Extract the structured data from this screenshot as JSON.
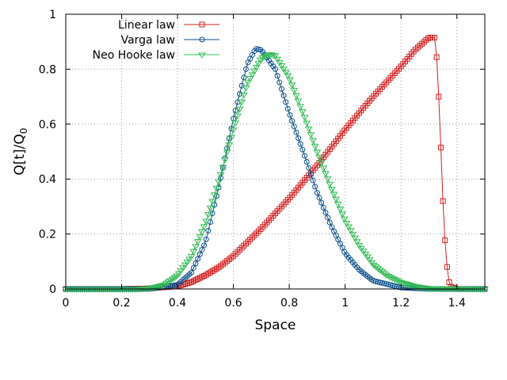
{
  "chart_data": {
    "type": "line",
    "title": "",
    "xlabel": "Space",
    "ylabel_main": "Q[t]/Q",
    "ylabel_sub": "0",
    "xlim": [
      0,
      1.5
    ],
    "ylim": [
      0,
      1
    ],
    "xticks": [
      0,
      0.2,
      0.4,
      0.6,
      0.8,
      1,
      1.2,
      1.4
    ],
    "xtick_labels": [
      "0",
      "0.2",
      "0.4",
      "0.6",
      "0.8",
      "1",
      "1.2",
      "1.4"
    ],
    "yticks": [
      0,
      0.2,
      0.4,
      0.6,
      0.8,
      1
    ],
    "ytick_labels": [
      "0",
      "0.2",
      "0.4",
      "0.6",
      "0.8",
      "1"
    ],
    "grid": true,
    "legend_position": "top-left",
    "series": [
      {
        "name": "Linear law",
        "color": "#d42020",
        "marker": "square",
        "x": [
          0,
          0.2,
          0.3,
          0.4,
          0.45,
          0.5,
          0.55,
          0.6,
          0.7,
          0.8,
          0.9,
          1.0,
          1.1,
          1.2,
          1.25,
          1.3,
          1.32,
          1.33,
          1.34,
          1.35,
          1.36,
          1.37,
          1.38,
          1.4,
          1.5
        ],
        "y": [
          0,
          0,
          0.002,
          0.01,
          0.025,
          0.05,
          0.08,
          0.12,
          0.22,
          0.33,
          0.45,
          0.58,
          0.7,
          0.81,
          0.87,
          0.915,
          0.915,
          0.82,
          0.58,
          0.32,
          0.13,
          0.03,
          0.008,
          0,
          0
        ]
      },
      {
        "name": "Varga law",
        "color": "#0a4f8a",
        "marker": "circle",
        "x": [
          0,
          0.3,
          0.4,
          0.45,
          0.5,
          0.55,
          0.6,
          0.65,
          0.68,
          0.7,
          0.75,
          0.8,
          0.85,
          0.9,
          0.95,
          1.0,
          1.05,
          1.1,
          1.2,
          1.3,
          1.5
        ],
        "y": [
          0,
          0,
          0.015,
          0.06,
          0.17,
          0.38,
          0.62,
          0.82,
          0.875,
          0.87,
          0.8,
          0.64,
          0.5,
          0.35,
          0.23,
          0.13,
          0.07,
          0.03,
          0.005,
          0,
          0
        ]
      },
      {
        "name": "Neo Hooke law",
        "color": "#33bb55",
        "marker": "triangle-down",
        "x": [
          0,
          0.25,
          0.3,
          0.35,
          0.4,
          0.45,
          0.5,
          0.55,
          0.6,
          0.65,
          0.7,
          0.73,
          0.75,
          0.8,
          0.85,
          0.9,
          0.95,
          1.0,
          1.05,
          1.1,
          1.15,
          1.2,
          1.25,
          1.3,
          1.5
        ],
        "y": [
          0,
          0,
          0.003,
          0.015,
          0.05,
          0.12,
          0.24,
          0.4,
          0.58,
          0.75,
          0.84,
          0.855,
          0.85,
          0.77,
          0.64,
          0.5,
          0.37,
          0.25,
          0.16,
          0.09,
          0.05,
          0.025,
          0.01,
          0.003,
          0
        ]
      }
    ]
  }
}
